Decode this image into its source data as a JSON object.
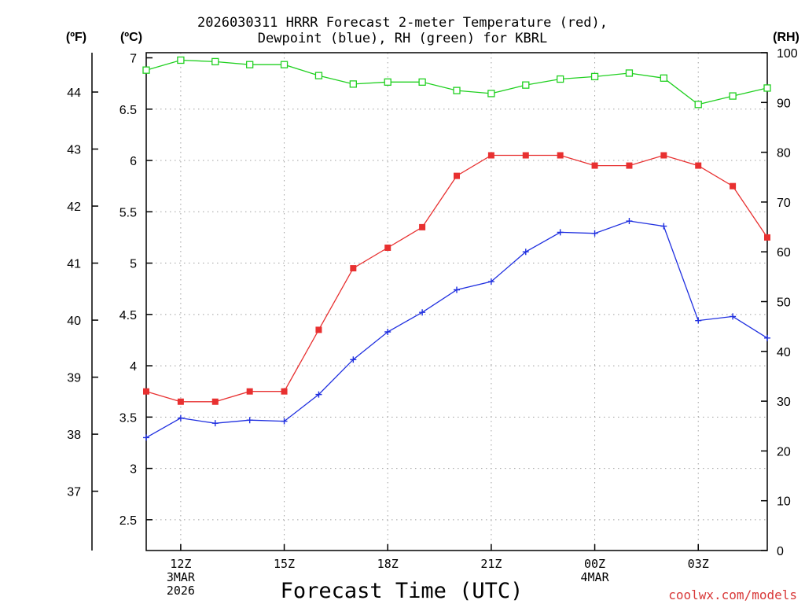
{
  "chart_data": {
    "type": "line",
    "title_line1": "2026030311 HRRR Forecast 2-meter Temperature (red),",
    "title_line2": "Dewpoint (blue), RH (green) for KBRL",
    "xlabel": "Forecast Time (UTC)",
    "credit": "coolwx.com/models",
    "units_f": "(ºF)",
    "units_c": "(ºC)",
    "units_rh": "(RH)",
    "x_hours": [
      11,
      12,
      13,
      14,
      15,
      16,
      17,
      18,
      19,
      20,
      21,
      22,
      23,
      24,
      25,
      26,
      27,
      28,
      29
    ],
    "xlim": [
      11,
      29
    ],
    "x_ticks": [
      {
        "hour": 12,
        "lines": [
          "12Z",
          "3MAR",
          "2026"
        ]
      },
      {
        "hour": 15,
        "lines": [
          "15Z"
        ]
      },
      {
        "hour": 18,
        "lines": [
          "18Z"
        ]
      },
      {
        "hour": 21,
        "lines": [
          "21Z"
        ]
      },
      {
        "hour": 24,
        "lines": [
          "00Z",
          "4MAR"
        ]
      },
      {
        "hour": 27,
        "lines": [
          "03Z"
        ]
      }
    ],
    "celsius_axis": {
      "ylim": [
        2.2,
        7.05
      ],
      "ticks": [
        2.5,
        3,
        3.5,
        4,
        4.5,
        5,
        5.5,
        6,
        6.5,
        7
      ],
      "labels": [
        "2.5",
        "3",
        "3.5",
        "4",
        "4.5",
        "5",
        "5.5",
        "6",
        "6.5",
        "7"
      ]
    },
    "fahrenheit_axis": {
      "ticks": [
        37,
        38,
        39,
        40,
        41,
        42,
        43,
        44
      ],
      "labels": [
        "37",
        "38",
        "39",
        "40",
        "41",
        "42",
        "43",
        "44"
      ]
    },
    "rh_axis": {
      "ylim": [
        0,
        100
      ],
      "ticks": [
        0,
        10,
        20,
        30,
        40,
        50,
        60,
        70,
        80,
        90,
        100
      ],
      "labels": [
        "0",
        "10",
        "20",
        "30",
        "40",
        "50",
        "60",
        "70",
        "80",
        "90",
        "100"
      ]
    },
    "series": [
      {
        "name": "Temperature",
        "color": "#e83030",
        "marker": "filled-square",
        "axis": "celsius",
        "values": [
          3.75,
          3.65,
          3.65,
          3.75,
          3.75,
          4.35,
          4.95,
          5.15,
          5.35,
          5.85,
          6.05,
          6.05,
          6.05,
          5.95,
          5.95,
          6.05,
          5.95,
          5.75,
          5.25
        ]
      },
      {
        "name": "Dewpoint",
        "color": "#2030e0",
        "marker": "plus",
        "axis": "celsius",
        "values": [
          3.3,
          3.49,
          3.44,
          3.47,
          3.46,
          3.72,
          4.06,
          4.33,
          4.52,
          4.74,
          4.82,
          5.11,
          5.3,
          5.29,
          5.41,
          5.36,
          4.44,
          4.48,
          4.27
        ]
      },
      {
        "name": "RH",
        "color": "#20d020",
        "marker": "open-square",
        "axis": "rh",
        "values": [
          96.5,
          98.5,
          98.2,
          97.6,
          97.6,
          95.4,
          93.7,
          94.1,
          94.1,
          92.4,
          91.8,
          93.5,
          94.7,
          95.2,
          95.9,
          94.9,
          89.6,
          91.3,
          92.9
        ]
      }
    ]
  }
}
